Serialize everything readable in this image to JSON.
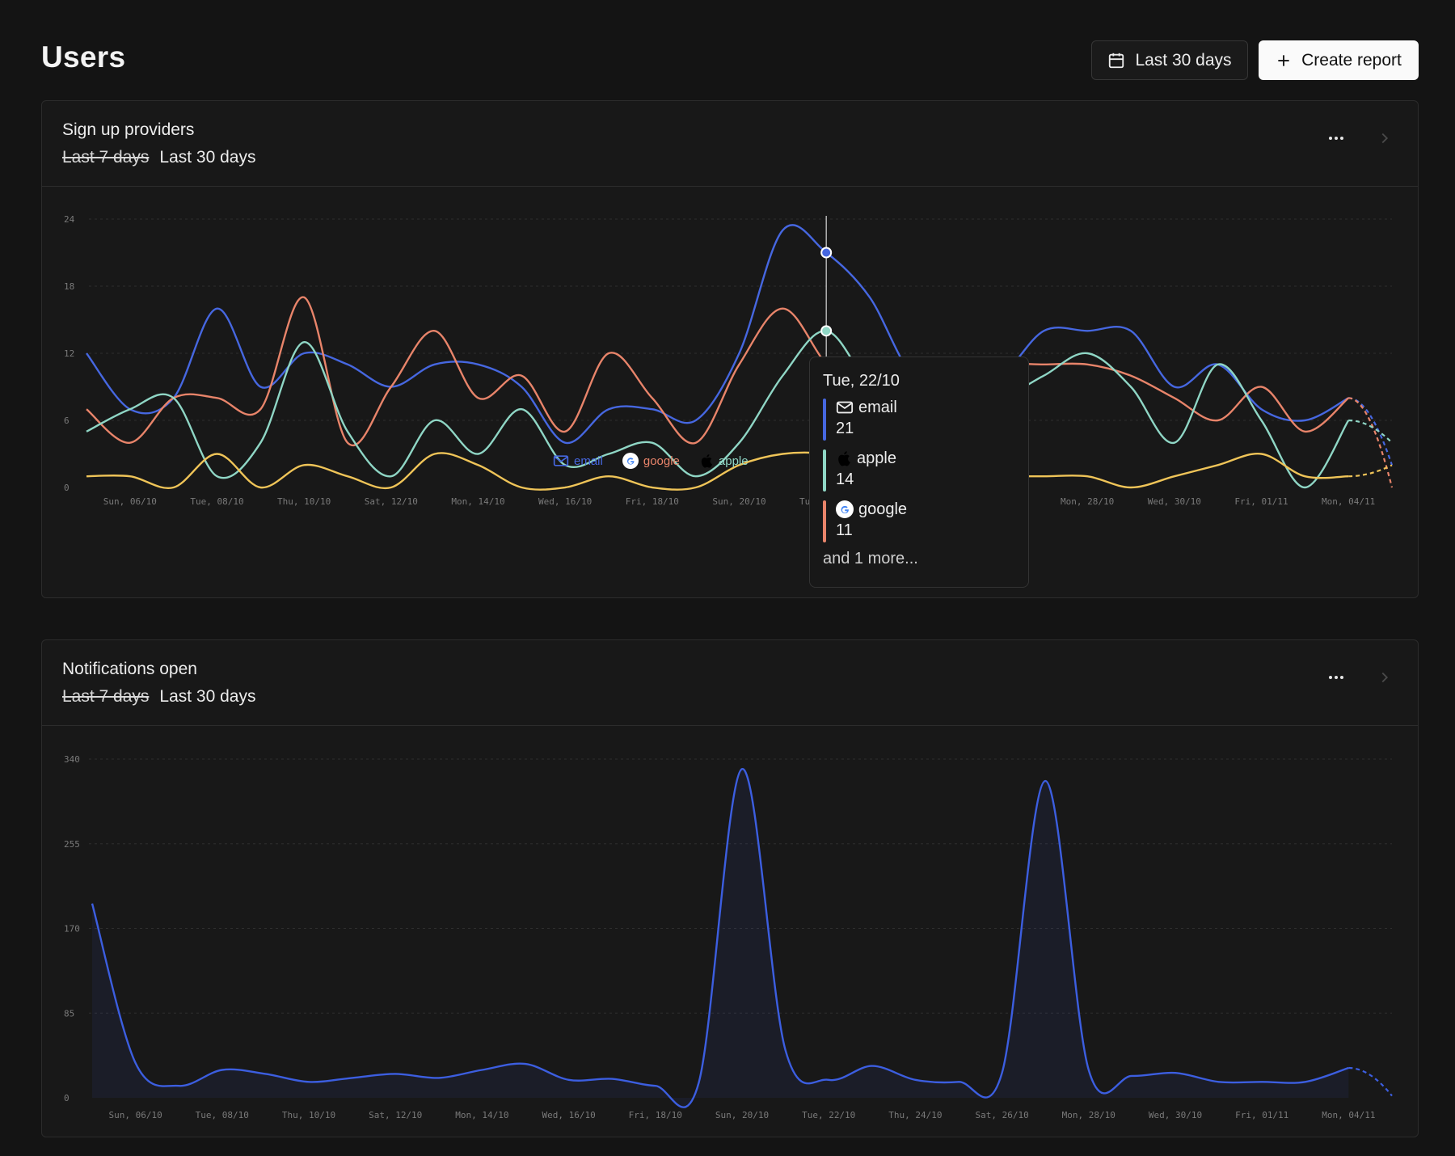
{
  "header": {
    "title": "Users",
    "range_button": "Last 30 days",
    "create_button": "Create report"
  },
  "cards": [
    {
      "title": "Sign up providers",
      "range_strike": "Last 7 days",
      "range_active": "Last 30 days"
    },
    {
      "title": "Notifications open",
      "range_strike": "Last 7 days",
      "range_active": "Last 30 days"
    }
  ],
  "legend": [
    {
      "label": "email",
      "color": "#4667e0"
    },
    {
      "label": "google",
      "color": "#e8846a"
    },
    {
      "label": "apple",
      "color": "#8fd6c5"
    }
  ],
  "tooltip": {
    "date": "Tue, 22/10",
    "rows": [
      {
        "label": "email",
        "value": "21",
        "color": "#4667e0"
      },
      {
        "label": "apple",
        "value": "14",
        "color": "#8fd6c5"
      },
      {
        "label": "google",
        "value": "11",
        "color": "#e8846a"
      }
    ],
    "more": "and 1 more..."
  },
  "colors": {
    "email": "#4667e0",
    "google": "#e8846a",
    "apple": "#8fd6c5",
    "other": "#efc458",
    "notif": "#3c5ee0"
  },
  "chart_data": [
    {
      "type": "line",
      "x": [
        "05/10",
        "06/10",
        "07/10",
        "08/10",
        "09/10",
        "10/10",
        "11/10",
        "12/10",
        "13/10",
        "14/10",
        "15/10",
        "16/10",
        "17/10",
        "18/10",
        "19/10",
        "20/10",
        "21/10",
        "22/10",
        "23/10",
        "24/10",
        "25/10",
        "26/10",
        "27/10",
        "28/10",
        "29/10",
        "30/10",
        "31/10",
        "01/11",
        "02/11",
        "03/11",
        "04/11"
      ],
      "x_tick_labels": [
        "Sun, 06/10",
        "Tue, 08/10",
        "Thu, 10/10",
        "Sat, 12/10",
        "Mon, 14/10",
        "Wed, 16/10",
        "Fri, 18/10",
        "Sun, 20/10",
        "Tue, 22/10",
        "Thu, 24/10",
        "Sat, 26/10",
        "Mon, 28/10",
        "Wed, 30/10",
        "Fri, 01/11",
        "Mon, 04/11"
      ],
      "y_ticks": [
        0,
        6,
        12,
        18,
        24
      ],
      "ylim": [
        0,
        24
      ],
      "series": [
        {
          "name": "email",
          "values": [
            12,
            7,
            8,
            16,
            9,
            12,
            11,
            9,
            11,
            11,
            9,
            4,
            7,
            7,
            6,
            12,
            23,
            21,
            17,
            10,
            10,
            10,
            14,
            14,
            14,
            9,
            11,
            7,
            6,
            8,
            2
          ]
        },
        {
          "name": "google",
          "values": [
            7,
            4,
            8,
            8,
            7,
            17,
            4,
            9,
            14,
            8,
            10,
            5,
            12,
            8,
            4,
            11,
            16,
            11,
            7,
            8,
            10,
            11,
            11,
            11,
            10,
            8,
            6,
            9,
            5,
            8,
            0
          ]
        },
        {
          "name": "apple",
          "values": [
            5,
            7,
            8,
            1,
            4,
            13,
            5,
            1,
            6,
            3,
            7,
            2,
            3,
            4,
            1,
            4,
            10,
            14,
            9,
            5,
            8,
            8,
            10,
            12,
            9,
            4,
            11,
            6,
            0,
            6,
            4
          ]
        },
        {
          "name": "other",
          "values": [
            1,
            1,
            0,
            3,
            0,
            2,
            1,
            0,
            3,
            2,
            0,
            0,
            1,
            0,
            0,
            2,
            3,
            3,
            2,
            1,
            1,
            1,
            1,
            1,
            0,
            1,
            2,
            3,
            1,
            1,
            2
          ]
        }
      ]
    },
    {
      "type": "area",
      "x": [
        "05/10",
        "06/10",
        "07/10",
        "08/10",
        "09/10",
        "10/10",
        "11/10",
        "12/10",
        "13/10",
        "14/10",
        "15/10",
        "16/10",
        "17/10",
        "18/10",
        "19/10",
        "20/10",
        "21/10",
        "22/10",
        "23/10",
        "24/10",
        "25/10",
        "26/10",
        "27/10",
        "28/10",
        "29/10",
        "30/10",
        "31/10",
        "01/11",
        "02/11",
        "03/11",
        "04/11"
      ],
      "x_tick_labels": [
        "Sun, 06/10",
        "Tue, 08/10",
        "Thu, 10/10",
        "Sat, 12/10",
        "Mon, 14/10",
        "Wed, 16/10",
        "Fri, 18/10",
        "Sun, 20/10",
        "Tue, 22/10",
        "Thu, 24/10",
        "Sat, 26/10",
        "Mon, 28/10",
        "Wed, 30/10",
        "Fri, 01/11",
        "Mon, 04/11"
      ],
      "y_ticks": [
        0,
        85,
        170,
        255,
        340
      ],
      "ylim": [
        0,
        340
      ],
      "series": [
        {
          "name": "notifications",
          "values": [
            195,
            35,
            12,
            28,
            24,
            16,
            20,
            24,
            20,
            28,
            34,
            18,
            19,
            12,
            15,
            330,
            48,
            18,
            32,
            18,
            16,
            25,
            318,
            28,
            22,
            25,
            16,
            16,
            16,
            30,
            2
          ]
        }
      ]
    }
  ]
}
